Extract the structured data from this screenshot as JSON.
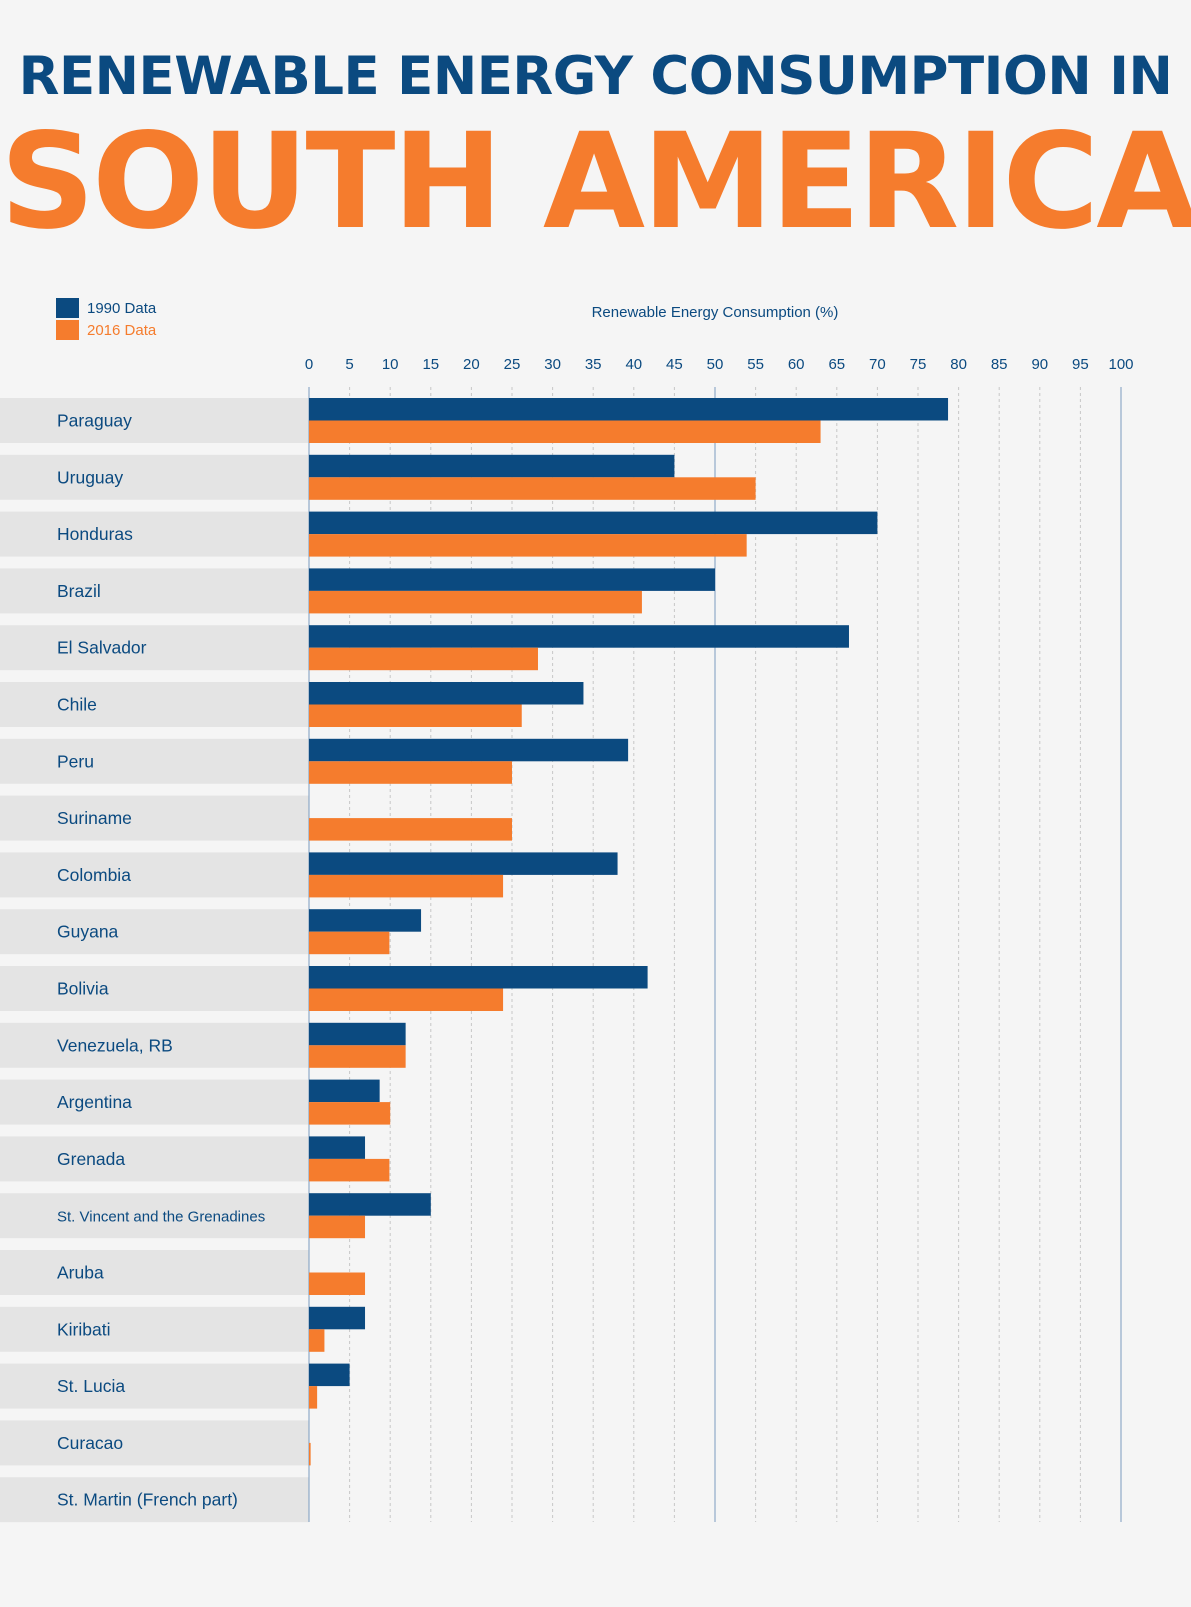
{
  "title": {
    "line1": "RENEWABLE ENERGY CONSUMPTION IN",
    "line2": "SOUTH AMERICA"
  },
  "colors": {
    "navy": "#0b4a80",
    "orange": "#f57c2d",
    "row_band": "#e4e4e4",
    "background": "#f5f5f5",
    "grid": "#c7c7c7",
    "axis": "#7a9cc0"
  },
  "legend": {
    "series1": "1990 Data",
    "series2": "2016 Data"
  },
  "chart_data": {
    "type": "bar",
    "orientation": "horizontal",
    "title": "RENEWABLE ENERGY CONSUMPTION IN SOUTH AMERICA",
    "xlabel": "Renewable Energy Consumption (%)",
    "ylabel": "",
    "xlim": [
      0,
      100
    ],
    "x_ticks": [
      0,
      5,
      10,
      15,
      20,
      25,
      30,
      35,
      40,
      45,
      50,
      55,
      60,
      65,
      70,
      75,
      80,
      85,
      90,
      95,
      100
    ],
    "grid": true,
    "legend_position": "top-left",
    "categories": [
      "Paraguay",
      "Uruguay",
      "Honduras",
      "Brazil",
      "El Salvador",
      "Chile",
      "Peru",
      "Suriname",
      "Colombia",
      "Guyana",
      "Bolivia",
      "Venezuela, RB",
      "Argentina",
      "Grenada",
      "St. Vincent and the Grenadines",
      "Aruba",
      "Kiribati",
      "St. Lucia",
      "Curacao",
      "St. Martin (French part)"
    ],
    "series": [
      {
        "name": "1990 Data",
        "color": "#0b4a80",
        "values": [
          78.7,
          45,
          70,
          50,
          66.5,
          33.8,
          39.3,
          0,
          38,
          13.8,
          41.7,
          11.9,
          8.7,
          6.9,
          15,
          0,
          6.9,
          5,
          0,
          0
        ]
      },
      {
        "name": "2016 Data",
        "color": "#f57c2d",
        "values": [
          63,
          55,
          53.9,
          41,
          28.2,
          26.2,
          25,
          25,
          23.9,
          9.9,
          23.9,
          11.9,
          10,
          9.9,
          6.9,
          6.9,
          1.9,
          1,
          0.2,
          0
        ]
      }
    ]
  }
}
